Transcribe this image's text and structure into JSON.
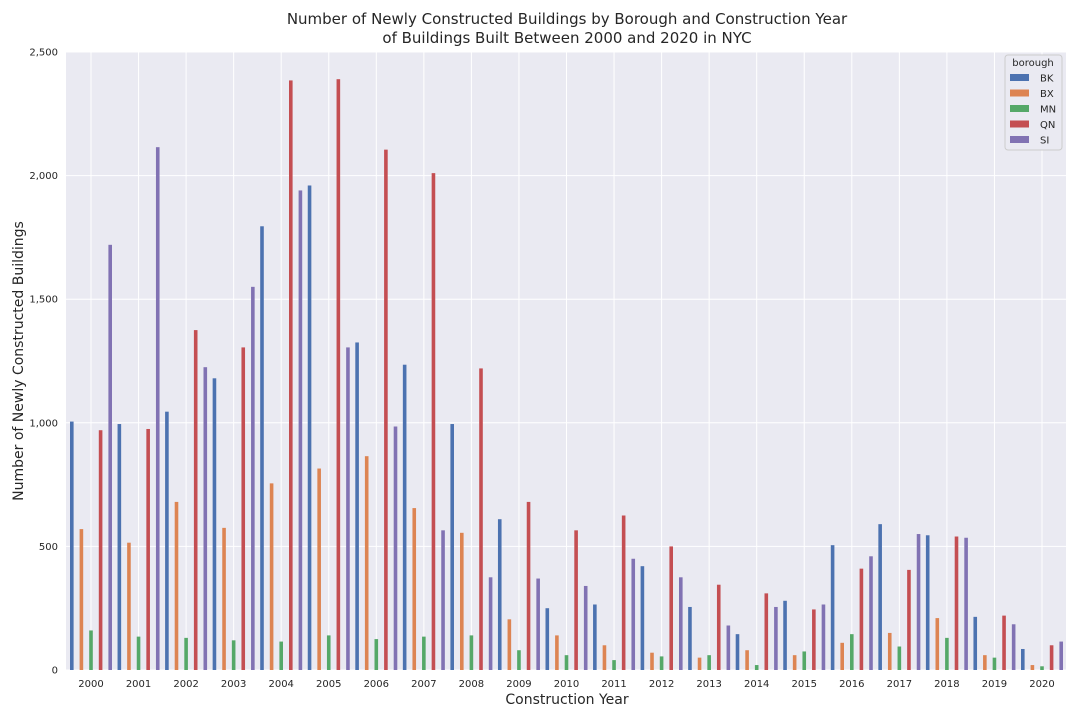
{
  "chart_data": {
    "type": "bar",
    "title_line1": "Number of Newly Constructed Buildings by Borough and Construction Year",
    "title_line2": "of Buildings Built Between 2000 and 2020 in NYC",
    "xlabel": "Construction Year",
    "ylabel": "Number of Newly Constructed Buildings",
    "ylim": [
      0,
      2500
    ],
    "yticks": [
      0,
      500,
      1000,
      1500,
      2000,
      2500
    ],
    "ytick_labels": [
      "0",
      "500",
      "1,000",
      "1,500",
      "2,000",
      "2,500"
    ],
    "grid": true,
    "legend_title": "borough",
    "legend_position": "top-right",
    "categories": [
      "2000",
      "2001",
      "2002",
      "2003",
      "2004",
      "2005",
      "2006",
      "2007",
      "2008",
      "2009",
      "2010",
      "2011",
      "2012",
      "2013",
      "2014",
      "2015",
      "2016",
      "2017",
      "2018",
      "2019",
      "2020"
    ],
    "series": [
      {
        "name": "BK",
        "color": "#4c72b0",
        "values": [
          1005,
          995,
          1045,
          1180,
          1795,
          1960,
          1325,
          1235,
          995,
          610,
          250,
          265,
          420,
          255,
          145,
          280,
          505,
          590,
          545,
          215,
          85
        ]
      },
      {
        "name": "BX",
        "color": "#dd8452",
        "values": [
          570,
          515,
          680,
          575,
          755,
          815,
          865,
          655,
          555,
          205,
          140,
          100,
          70,
          50,
          80,
          60,
          110,
          150,
          210,
          60,
          20
        ]
      },
      {
        "name": "MN",
        "color": "#55a868",
        "values": [
          160,
          135,
          130,
          120,
          115,
          140,
          125,
          135,
          140,
          80,
          60,
          40,
          55,
          60,
          20,
          75,
          145,
          95,
          130,
          50,
          15
        ]
      },
      {
        "name": "QN",
        "color": "#c44e52",
        "values": [
          970,
          975,
          1375,
          1305,
          2385,
          2390,
          2105,
          2010,
          1220,
          680,
          565,
          625,
          500,
          345,
          310,
          245,
          410,
          405,
          540,
          220,
          100
        ]
      },
      {
        "name": "SI",
        "color": "#8172b3",
        "values": [
          1720,
          2115,
          1225,
          1550,
          1940,
          1305,
          985,
          565,
          375,
          370,
          340,
          450,
          375,
          180,
          255,
          265,
          460,
          550,
          535,
          185,
          115
        ]
      }
    ]
  }
}
